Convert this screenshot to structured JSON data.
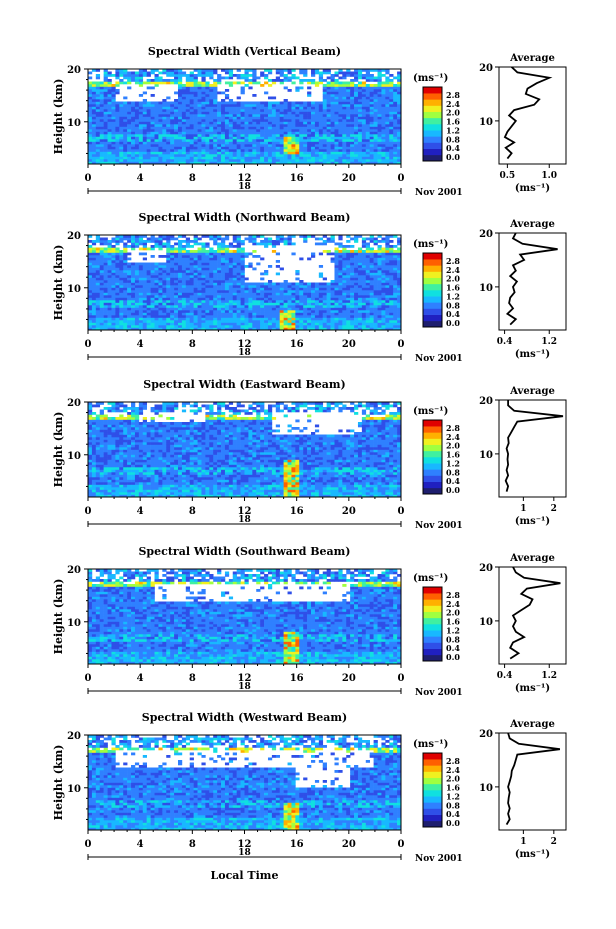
{
  "figure": {
    "xlabel": "Local Time",
    "xticks": [
      "0",
      "4",
      "8",
      "12",
      "16",
      "20",
      "0"
    ],
    "day_label": "18",
    "date_label": "Nov 2001",
    "ylabel": "Height (km)",
    "yticks": [
      "20",
      "10"
    ],
    "unit_label": "(ms⁻¹)",
    "colorbar_ticks": [
      "2.8",
      "2.4",
      "2.0",
      "1.6",
      "1.2",
      "0.8",
      "0.4",
      "0.0"
    ],
    "colorscale": [
      "#1e1e6e",
      "#2020c0",
      "#2f4fe8",
      "#2f80ff",
      "#18b8ff",
      "#10e0e0",
      "#40f0a0",
      "#a0ff40",
      "#f0f020",
      "#ffb000",
      "#ff6000",
      "#e00000"
    ],
    "average_title": "Average",
    "average_xlabel": "(ms⁻¹)"
  },
  "chart_data": [
    {
      "type": "heatmap",
      "title": "Spectral Width (Vertical Beam)",
      "ylabel": "Height (km)",
      "xlabel": "",
      "xlim": [
        0,
        24
      ],
      "ylim": [
        2,
        20
      ],
      "white_gaps": [
        [
          10,
          18,
          14,
          17
        ],
        [
          2,
          7,
          14,
          17
        ]
      ],
      "hot_spot": {
        "t": 15.5,
        "h": [
          4,
          7
        ]
      },
      "average_profile": {
        "xticks": [
          "0.5",
          "1.0"
        ],
        "xlim": [
          0.4,
          1.2
        ],
        "heights": [
          3,
          4,
          5,
          6,
          7,
          8,
          9,
          10,
          11,
          12,
          13,
          14,
          15,
          16,
          17,
          18,
          19,
          20
        ],
        "values": [
          0.5,
          0.55,
          0.48,
          0.58,
          0.47,
          0.5,
          0.55,
          0.6,
          0.52,
          0.58,
          0.82,
          0.88,
          0.72,
          0.74,
          0.85,
          1.0,
          0.62,
          0.55
        ]
      }
    },
    {
      "type": "heatmap",
      "title": "Spectral Width (Northward Beam)",
      "ylabel": "Height (km)",
      "xlabel": "",
      "xlim": [
        0,
        24
      ],
      "ylim": [
        2,
        20
      ],
      "white_gaps": [
        [
          12,
          19,
          11,
          18
        ],
        [
          3,
          6,
          15,
          17
        ]
      ],
      "hot_spot": {
        "t": 15.4,
        "h": [
          2,
          6
        ]
      },
      "average_profile": {
        "xticks": [
          "0.4",
          "1.2"
        ],
        "xlim": [
          0.3,
          1.5
        ],
        "heights": [
          3,
          4,
          5,
          6,
          7,
          8,
          9,
          10,
          11,
          12,
          13,
          14,
          15,
          16,
          17,
          18,
          19,
          20
        ],
        "values": [
          0.5,
          0.6,
          0.45,
          0.55,
          0.48,
          0.5,
          0.58,
          0.55,
          0.62,
          0.5,
          0.6,
          0.55,
          0.75,
          0.68,
          1.35,
          0.72,
          0.55,
          0.6
        ]
      }
    },
    {
      "type": "heatmap",
      "title": "Spectral Width (Eastward Beam)",
      "ylabel": "Height (km)",
      "xlabel": "",
      "xlim": [
        0,
        24
      ],
      "ylim": [
        2,
        20
      ],
      "white_gaps": [
        [
          14,
          21,
          14,
          18
        ],
        [
          4,
          9,
          16,
          18
        ]
      ],
      "hot_spot": {
        "t": 15.5,
        "h": [
          2,
          9
        ]
      },
      "average_profile": {
        "xticks": [
          "1",
          "2"
        ],
        "xlim": [
          0.2,
          2.4
        ],
        "heights": [
          3,
          4,
          5,
          6,
          7,
          8,
          9,
          10,
          11,
          12,
          13,
          14,
          15,
          16,
          17,
          18,
          19,
          20
        ],
        "values": [
          0.45,
          0.5,
          0.42,
          0.5,
          0.45,
          0.5,
          0.48,
          0.5,
          0.45,
          0.52,
          0.5,
          0.6,
          0.7,
          0.8,
          2.3,
          0.7,
          0.5,
          0.5
        ]
      }
    },
    {
      "type": "heatmap",
      "title": "Spectral Width (Southward Beam)",
      "ylabel": "Height (km)",
      "xlabel": "",
      "xlim": [
        0,
        24
      ],
      "ylim": [
        2,
        20
      ],
      "white_gaps": [
        [
          5,
          20,
          14,
          17
        ]
      ],
      "hot_spot": {
        "t": 15.5,
        "h": [
          2,
          8
        ]
      },
      "average_profile": {
        "xticks": [
          "0.4",
          "1.2"
        ],
        "xlim": [
          0.3,
          1.5
        ],
        "heights": [
          3,
          4,
          5,
          6,
          7,
          8,
          9,
          10,
          11,
          12,
          13,
          14,
          15,
          16,
          17,
          18,
          19,
          20
        ],
        "values": [
          0.5,
          0.65,
          0.5,
          0.55,
          0.75,
          0.6,
          0.55,
          0.6,
          0.55,
          0.7,
          0.85,
          0.9,
          0.7,
          0.8,
          1.4,
          0.75,
          0.6,
          0.55
        ]
      }
    },
    {
      "type": "heatmap",
      "title": "Spectral Width (Westward Beam)",
      "ylabel": "Height (km)",
      "xlabel": "Local Time",
      "xlim": [
        0,
        24
      ],
      "ylim": [
        2,
        20
      ],
      "white_gaps": [
        [
          2,
          22,
          14,
          17
        ],
        [
          16,
          20,
          10,
          14
        ]
      ],
      "hot_spot": {
        "t": 15.5,
        "h": [
          2,
          7
        ]
      },
      "average_profile": {
        "xticks": [
          "1",
          "2"
        ],
        "xlim": [
          0.2,
          2.4
        ],
        "heights": [
          3,
          4,
          5,
          6,
          7,
          8,
          9,
          10,
          11,
          12,
          13,
          14,
          15,
          16,
          17,
          18,
          19,
          20
        ],
        "values": [
          0.45,
          0.55,
          0.5,
          0.55,
          0.5,
          0.52,
          0.55,
          0.5,
          0.55,
          0.6,
          0.62,
          0.7,
          0.75,
          0.8,
          2.2,
          0.85,
          0.55,
          0.5
        ]
      }
    }
  ]
}
